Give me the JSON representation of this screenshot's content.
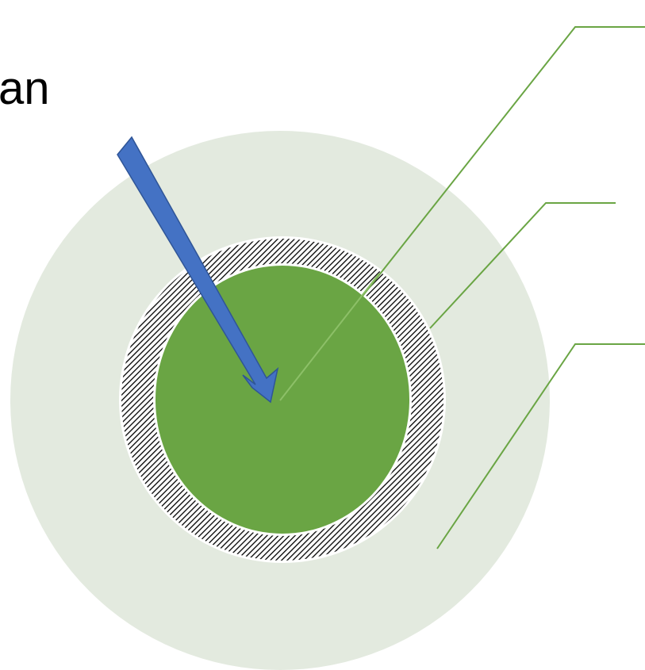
{
  "diagram": {
    "label_partial": "an"
  },
  "colors": {
    "background": "#ffffff",
    "outer_layer": "#e3eadf",
    "hatch_ring_base": "#ffffff",
    "hatch_stroke": "#000000",
    "core": "#6aa544",
    "leader_lines": "#6aa544",
    "arrow_fill": "#4472c4",
    "arrow_stroke": "#2f5597"
  }
}
